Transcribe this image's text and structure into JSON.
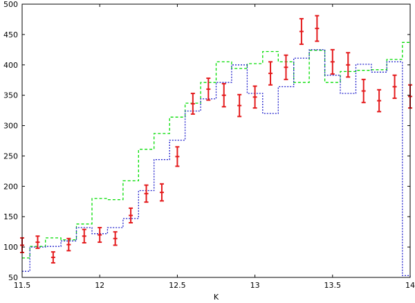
{
  "chart_data": {
    "type": "line",
    "title": "",
    "xlabel": "K",
    "ylabel": "",
    "xlim": [
      11.5,
      14
    ],
    "ylim": [
      50,
      500
    ],
    "grid": false,
    "x_ticks": [
      11.5,
      12,
      12.5,
      13,
      13.5,
      14
    ],
    "x_tick_labels": [
      "11.5",
      "12",
      "12.5",
      "13",
      "13.5",
      "14"
    ],
    "y_ticks": [
      50,
      100,
      150,
      200,
      250,
      300,
      350,
      400,
      450,
      500
    ],
    "y_tick_labels": [
      "50",
      "100",
      "150",
      "200",
      "250",
      "300",
      "350",
      "400",
      "450",
      "500"
    ],
    "series": [
      {
        "kind": "errorbar",
        "color": "#e41a1c",
        "points": [
          {
            "x": 11.5,
            "y": 103,
            "err": 12
          },
          {
            "x": 11.6,
            "y": 108,
            "err": 10
          },
          {
            "x": 11.7,
            "y": 83,
            "err": 9
          },
          {
            "x": 11.8,
            "y": 104,
            "err": 10
          },
          {
            "x": 11.9,
            "y": 118,
            "err": 11
          },
          {
            "x": 12.0,
            "y": 120,
            "err": 12
          },
          {
            "x": 12.1,
            "y": 114,
            "err": 11
          },
          {
            "x": 12.2,
            "y": 152,
            "err": 12
          },
          {
            "x": 12.3,
            "y": 188,
            "err": 14
          },
          {
            "x": 12.4,
            "y": 190,
            "err": 14
          },
          {
            "x": 12.5,
            "y": 249,
            "err": 16
          },
          {
            "x": 12.6,
            "y": 336,
            "err": 17
          },
          {
            "x": 12.7,
            "y": 360,
            "err": 18
          },
          {
            "x": 12.8,
            "y": 350,
            "err": 19
          },
          {
            "x": 12.9,
            "y": 333,
            "err": 18
          },
          {
            "x": 13.0,
            "y": 347,
            "err": 18
          },
          {
            "x": 13.1,
            "y": 386,
            "err": 19
          },
          {
            "x": 13.2,
            "y": 396,
            "err": 20
          },
          {
            "x": 13.3,
            "y": 455,
            "err": 21
          },
          {
            "x": 13.4,
            "y": 460,
            "err": 21
          },
          {
            "x": 13.5,
            "y": 405,
            "err": 20
          },
          {
            "x": 13.6,
            "y": 400,
            "err": 20
          },
          {
            "x": 13.7,
            "y": 357,
            "err": 19
          },
          {
            "x": 13.8,
            "y": 341,
            "err": 18
          },
          {
            "x": 13.9,
            "y": 364,
            "err": 19
          },
          {
            "x": 14.0,
            "y": 348,
            "err": 19
          }
        ]
      },
      {
        "kind": "step",
        "color": "#00dd00",
        "dash": "4,3",
        "edges": [
          11.5,
          11.55,
          11.65,
          11.75,
          11.85,
          11.95,
          12.05,
          12.15,
          12.25,
          12.35,
          12.45,
          12.55,
          12.65,
          12.75,
          12.85,
          12.95,
          13.05,
          13.15,
          13.25,
          13.35,
          13.45,
          13.55,
          13.65,
          13.75,
          13.85,
          13.95,
          14.0
        ],
        "values": [
          82,
          101,
          115,
          112,
          138,
          180,
          178,
          209,
          261,
          287,
          314,
          337,
          371,
          405,
          394,
          402,
          422,
          405,
          371,
          424,
          371,
          389,
          391,
          392,
          409,
          437
        ]
      },
      {
        "kind": "step",
        "color": "#1f1fcc",
        "dash": "2,2",
        "edges": [
          11.5,
          11.55,
          11.65,
          11.75,
          11.85,
          11.95,
          12.05,
          12.15,
          12.25,
          12.35,
          12.45,
          12.55,
          12.65,
          12.75,
          12.85,
          12.95,
          13.05,
          13.15,
          13.25,
          13.35,
          13.45,
          13.55,
          13.65,
          13.75,
          13.85,
          13.95,
          14.0
        ],
        "values": [
          60,
          100,
          101,
          110,
          132,
          122,
          132,
          147,
          193,
          244,
          276,
          324,
          344,
          371,
          400,
          353,
          320,
          364,
          411,
          425,
          383,
          353,
          401,
          388,
          405,
          53
        ],
        "tail_drop_to": 50
      }
    ]
  }
}
